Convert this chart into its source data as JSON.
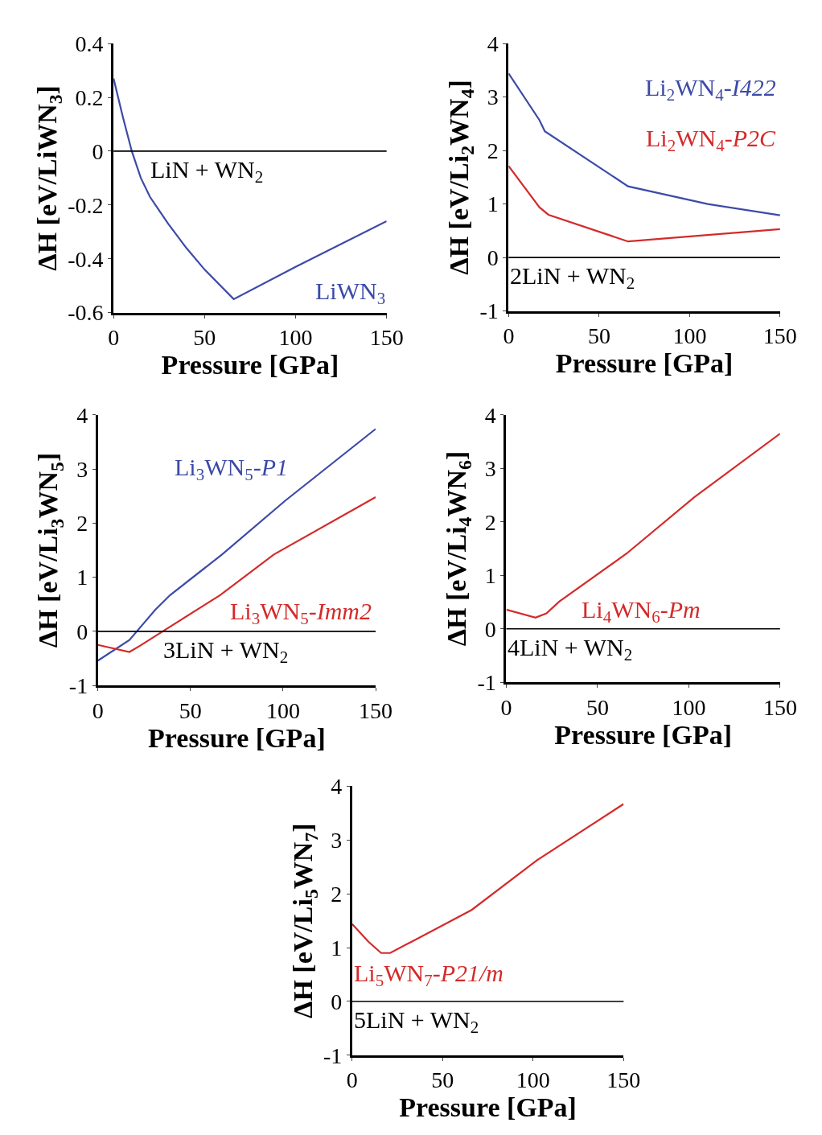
{
  "chart_data": [
    {
      "type": "line",
      "xlabel": "Pressure [GPa]",
      "ylabel": "ΔH [eV/LiWN$_{3}$]",
      "xlim": [
        0,
        150
      ],
      "xticks": [
        0,
        50,
        100,
        150
      ],
      "ylim": [
        -0.6,
        0.4
      ],
      "yticks": [
        -0.6,
        -0.4,
        -0.2,
        0,
        0.2,
        0.4
      ],
      "grid": false,
      "legend": false,
      "series": [
        {
          "name": "LiWN$_{3}$",
          "color": "#3c4aa8",
          "x": [
            0,
            5,
            10,
            15,
            20,
            30,
            40,
            50,
            66,
            100,
            150
          ],
          "values": [
            0.27,
            0.13,
            0.0,
            -0.1,
            -0.17,
            -0.27,
            -0.36,
            -0.44,
            -0.55,
            -0.43,
            -0.26
          ]
        }
      ],
      "ref_lines": [
        {
          "axis": "y",
          "value": 0,
          "label": "LiN + WN$_{2}$",
          "color": "#000000"
        }
      ]
    },
    {
      "type": "line",
      "xlabel": "Pressure [GPa]",
      "ylabel": "ΔH [eV/Li$_{2}$WN$_{4}$]",
      "xlim": [
        0,
        150
      ],
      "xticks": [
        0,
        50,
        100,
        150
      ],
      "ylim": [
        -1,
        4
      ],
      "yticks": [
        -1,
        0,
        1,
        2,
        3,
        4
      ],
      "grid": false,
      "legend": false,
      "series": [
        {
          "name": "Li$_{2}$WN$_{4}$-I422",
          "color": "#3c4aa8",
          "x": [
            0,
            17,
            20,
            66,
            110,
            150
          ],
          "values": [
            3.44,
            2.57,
            2.36,
            1.33,
            1.0,
            0.79
          ]
        },
        {
          "name": "Li$_{2}$WN$_{4}$-P2C",
          "color": "#d42a2a",
          "x": [
            0,
            17,
            22,
            66,
            150
          ],
          "values": [
            1.71,
            0.94,
            0.8,
            0.3,
            0.53
          ]
        }
      ],
      "ref_lines": [
        {
          "axis": "y",
          "value": 0,
          "label": "2LiN + WN$_{2}$",
          "color": "#000000"
        }
      ]
    },
    {
      "type": "line",
      "xlabel": "Pressure [GPa]",
      "ylabel": "ΔH [eV/Li$_{3}$WN$_{5}$]",
      "xlim": [
        0,
        150
      ],
      "xticks": [
        0,
        50,
        100,
        150
      ],
      "ylim": [
        -1,
        4
      ],
      "yticks": [
        -1,
        0,
        1,
        2,
        3,
        4
      ],
      "grid": false,
      "legend": false,
      "series": [
        {
          "name": "Li$_{3}$WN$_{5}$-P1",
          "color": "#3c4aa8",
          "x": [
            0,
            17,
            21,
            31,
            39,
            67,
            101,
            150
          ],
          "values": [
            -0.54,
            -0.16,
            0.0,
            0.4,
            0.67,
            1.42,
            2.41,
            3.74
          ]
        },
        {
          "name": "Li$_{3}$WN$_{5}$-Imm2",
          "color": "#d42a2a",
          "x": [
            0,
            17,
            23,
            35,
            66,
            95,
            150
          ],
          "values": [
            -0.25,
            -0.38,
            -0.26,
            0.0,
            0.67,
            1.42,
            2.48
          ]
        }
      ],
      "ref_lines": [
        {
          "axis": "y",
          "value": 0,
          "label": "3LiN + WN$_{2}$",
          "color": "#000000"
        }
      ]
    },
    {
      "type": "line",
      "xlabel": "Pressure [GPa]",
      "ylabel": "ΔH [eV/Li$_{4}$WN$_{6}$]",
      "xlim": [
        0,
        150
      ],
      "xticks": [
        0,
        50,
        100,
        150
      ],
      "ylim": [
        -1,
        4
      ],
      "yticks": [
        -1,
        0,
        1,
        2,
        3,
        4
      ],
      "grid": false,
      "legend": false,
      "series": [
        {
          "name": "Li$_{4}$WN$_{6}$-Pm",
          "color": "#d42a2a",
          "x": [
            0,
            16,
            22,
            29,
            66,
            103,
            150
          ],
          "values": [
            0.36,
            0.21,
            0.29,
            0.51,
            1.41,
            2.46,
            3.65
          ]
        }
      ],
      "ref_lines": [
        {
          "axis": "y",
          "value": 0,
          "label": "4LiN + WN$_{2}$",
          "color": "#000000"
        }
      ]
    },
    {
      "type": "line",
      "xlabel": "Pressure [GPa]",
      "ylabel": "ΔH [eV/Li$_{5}$WN$_{7}$]",
      "xlim": [
        0,
        150
      ],
      "xticks": [
        0,
        50,
        100,
        150
      ],
      "ylim": [
        -1,
        4
      ],
      "yticks": [
        -1,
        0,
        1,
        2,
        3,
        4
      ],
      "grid": false,
      "legend": false,
      "series": [
        {
          "name": "Li$_{5}$WN$_{7}$-P21/m",
          "color": "#d42a2a",
          "x": [
            0,
            9,
            16,
            21,
            66,
            102,
            150
          ],
          "values": [
            1.44,
            1.11,
            0.9,
            0.9,
            1.7,
            2.62,
            3.67
          ]
        }
      ],
      "ref_lines": [
        {
          "axis": "y",
          "value": 0,
          "label": "5LiN + WN$_{2}$",
          "color": "#000000"
        }
      ]
    }
  ]
}
